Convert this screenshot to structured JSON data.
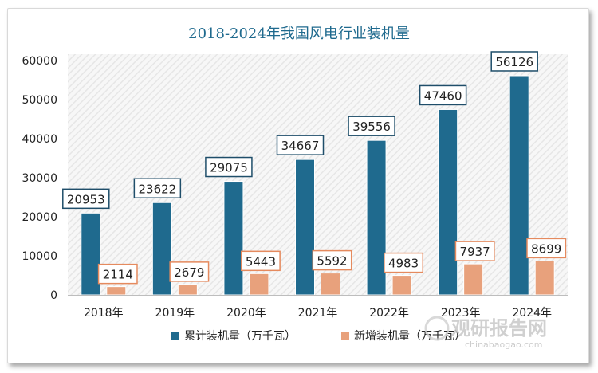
{
  "chart_data": {
    "type": "bar",
    "title": "2018-2024年我国风电行业装机量",
    "categories": [
      "2018年",
      "2019年",
      "2020年",
      "2021年",
      "2022年",
      "2023年",
      "2024年"
    ],
    "series": [
      {
        "name": "累计装机量（万千瓦）",
        "values": [
          20953,
          23622,
          29075,
          34667,
          39556,
          47460,
          56126
        ],
        "color": "#1f6a8e"
      },
      {
        "name": "新增装机量（万千瓦）",
        "values": [
          2114,
          2679,
          5443,
          5592,
          4983,
          7937,
          8699
        ],
        "color": "#e8a17c"
      }
    ],
    "ylim": [
      0,
      60000
    ],
    "yticks": [
      0,
      10000,
      20000,
      30000,
      40000,
      50000,
      60000
    ],
    "xlabel": "",
    "ylabel": "",
    "grid": false,
    "legend_position": "bottom",
    "data_labels": true
  },
  "watermark": {
    "brand": "观研报告网",
    "url": "chinabaogao.com"
  },
  "colors": {
    "title": "#1f6a8e",
    "axis_text": "#222222",
    "plot_bg_stripe": "#e9e9e9"
  }
}
